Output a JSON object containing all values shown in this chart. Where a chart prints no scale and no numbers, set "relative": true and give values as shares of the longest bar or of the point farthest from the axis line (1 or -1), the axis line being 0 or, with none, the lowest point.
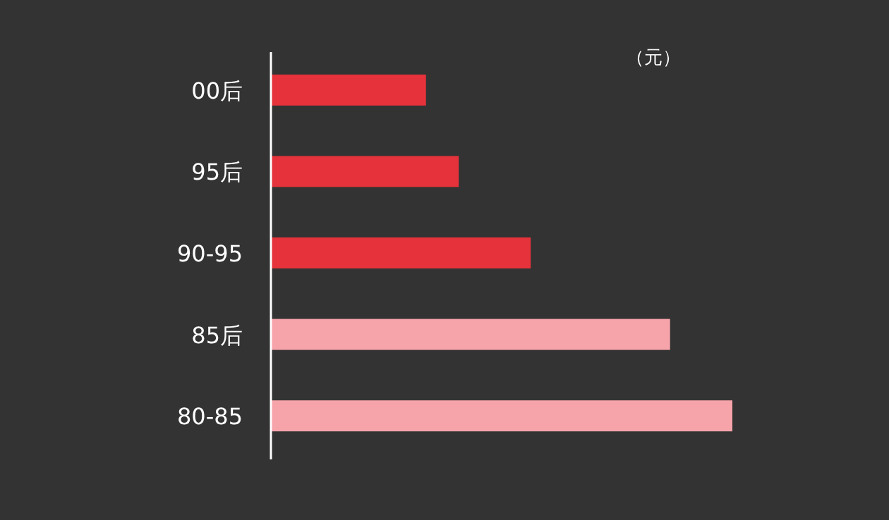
{
  "chart_data": {
    "type": "bar",
    "orientation": "horizontal",
    "relative": true,
    "categories": [
      "00后",
      "95后",
      "90-95",
      "85后",
      "80-85"
    ],
    "values": [
      0.336,
      0.407,
      0.563,
      0.865,
      1
    ],
    "colors": [
      "#e5323b",
      "#e5323b",
      "#e5323b",
      "#f6a3aa",
      "#f6a3aa"
    ],
    "annotations": [
      "（元）"
    ]
  }
}
